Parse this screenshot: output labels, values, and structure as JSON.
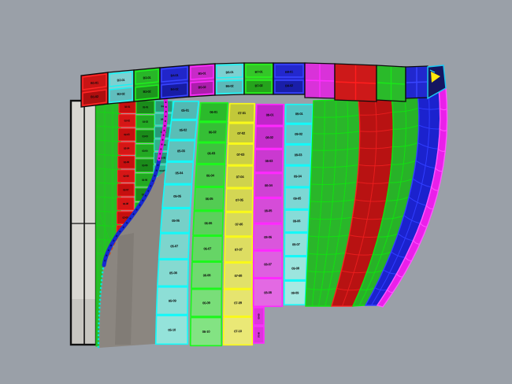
{
  "viewport": {
    "background": "#9aa0a8",
    "shadow_surface_fill": "#8b8680",
    "shadow_surface_dark": "#7e7973",
    "outline_color": "#0c0c0c",
    "label_color": "#0a0a0a"
  },
  "mast": {
    "fill": "#d9d7d2",
    "border": "#101010"
  },
  "top_band": {
    "panels": [
      {
        "color": "red",
        "fill": "#c41616",
        "fill2": "#a81010",
        "border": "#ff2a2a",
        "labels": [
          "B1-01",
          "B1-02"
        ]
      },
      {
        "color": "cyan",
        "fill": "#7fd0d0",
        "fill2": "#63bcbc",
        "border": "#1ef2f2",
        "labels": [
          "B2-01",
          "B2-02"
        ]
      },
      {
        "color": "green",
        "fill": "#2cb42c",
        "fill2": "#209420",
        "border": "#24f024",
        "labels": [
          "B3-01",
          "B3-02"
        ]
      },
      {
        "color": "blue",
        "fill": "#2226c4",
        "fill2": "#181ca0",
        "border": "#3a46ff",
        "labels": [
          "B4-01",
          "B4-02"
        ]
      },
      {
        "color": "magenta",
        "fill": "#c42cc4",
        "fill2": "#a820a8",
        "border": "#ff30ff",
        "labels": [
          "B5-01",
          "B5-02"
        ]
      },
      {
        "color": "cyan",
        "fill": "#7fd0d0",
        "fill2": "#5fb8b8",
        "border": "#1ef2f2",
        "labels": [
          "B6-01",
          "B6-02"
        ]
      },
      {
        "color": "green",
        "fill": "#38c42c",
        "fill2": "#28a220",
        "border": "#2cf424",
        "labels": [
          "B7-01",
          "B7-02"
        ]
      },
      {
        "color": "blue",
        "fill": "#2428c8",
        "fill2": "#1a1ea4",
        "border": "#3a46ff",
        "labels": [
          "B8-01",
          "B8-02"
        ]
      },
      {
        "color": "magenta",
        "fill": "#d434d4",
        "fill2": "#c02cc0",
        "border": "#ff30ff",
        "labels": []
      },
      {
        "color": "red",
        "fill": "#c81a1a",
        "fill2": "#b21212",
        "border": "#ff2020",
        "labels": []
      },
      {
        "color": "green",
        "fill": "#2eb82e",
        "fill2": "#28a428",
        "border": "#1ee61e",
        "labels": []
      },
      {
        "color": "blue",
        "fill": "#2228c8",
        "fill2": "#1a20aa",
        "border": "#3a46ff",
        "labels": []
      }
    ],
    "cap": {
      "fill": "#14165e",
      "border": "#22c8f0",
      "arrow_color": "#ffe814"
    }
  },
  "columns": [
    {
      "id": "col-red-tabs",
      "fill_top": "#c01010",
      "fill_bot": "#d01818",
      "border": "#ff2626",
      "labels": [
        "02-01",
        "02-02",
        "02-03",
        "02-04",
        "02-05",
        "02-06",
        "02-07",
        "02-08",
        "02-09",
        "02-10"
      ]
    },
    {
      "id": "col-darkgreen",
      "fill_top": "#1d8a1d",
      "fill_bot": "#27a827",
      "border": "#2ee62e",
      "labels": [
        "03-01",
        "03-02",
        "03-03",
        "03-04",
        "03-05",
        "03-06",
        "03-07",
        "03-08",
        "03-09",
        "03-10"
      ]
    },
    {
      "id": "col-teal-tabs",
      "fill_top": "#2a9878",
      "fill_bot": "#35b08c",
      "border": "#2ee6c0",
      "labels": [
        "04-01",
        "04-02",
        "04-03",
        "04-04",
        "04-05",
        "04-06",
        "04-07",
        "04-08"
      ]
    },
    {
      "id": "col-cyan-1",
      "fill_top": "#55b8b2",
      "fill_bot": "#96e2da",
      "border": "#1cf6f6",
      "labels": [
        "05-01",
        "05-02",
        "05-03",
        "05-04",
        "05-05",
        "05-06",
        "05-07",
        "05-08",
        "05-09",
        "05-10"
      ]
    },
    {
      "id": "col-green",
      "fill_top": "#2fb82f",
      "fill_bot": "#86e286",
      "border": "#23f523",
      "labels": [
        "06-01",
        "06-02",
        "06-03",
        "06-04",
        "06-05",
        "06-06",
        "06-07",
        "06-08",
        "06-09",
        "06-10"
      ]
    },
    {
      "id": "col-yellow",
      "fill_top": "#c2c83e",
      "fill_bot": "#eae87a",
      "border": "#f8f823",
      "labels": [
        "07-01",
        "07-02",
        "07-03",
        "07-04",
        "07-05",
        "07-06",
        "07-07",
        "07-08",
        "07-09",
        "07-10"
      ]
    },
    {
      "id": "col-magenta",
      "fill_top": "#bc28c4",
      "fill_bot": "#e06ae0",
      "border": "#ff2bff",
      "labels": [
        "08-01",
        "08-02",
        "08-03",
        "08-04",
        "08-05",
        "08-06",
        "08-07",
        "08-08"
      ]
    },
    {
      "id": "col-cyan-2",
      "fill_top": "#58c4c4",
      "fill_bot": "#a8e8e2",
      "border": "#1cf6f6",
      "labels": [
        "09-01",
        "09-02",
        "09-03",
        "09-04",
        "09-05",
        "09-06",
        "09-07",
        "09-08",
        "09-09"
      ]
    }
  ],
  "magenta_strip": {
    "fill": "#d836d8",
    "border": "#ff2bff",
    "labels": [
      "08-09",
      "08-10"
    ]
  },
  "surfaces": [
    {
      "id": "surface-green-1",
      "fill": "#2eb42e",
      "grid": "#17e017"
    },
    {
      "id": "surface-red",
      "fill": "#c81616",
      "grid": "#ff2424"
    },
    {
      "id": "surface-green-2",
      "fill": "#2cb02c",
      "grid": "#17e017"
    },
    {
      "id": "surface-blue",
      "fill": "#1c22c8",
      "grid": "#3340ff"
    },
    {
      "id": "surface-magenta-edge",
      "fill": "#e422e4",
      "grid": "#ff5aff"
    }
  ],
  "backing_column": {
    "fill": "#2eb82e",
    "grid": "#19d619"
  },
  "curves": {
    "magenta": "#d818d8",
    "magenta_core": "#5a0b5a",
    "blue": "#1728cc",
    "blue_core": "#0a1470",
    "cyan_dashed": "#12e4d4",
    "red_dashed": "#cc4818"
  }
}
